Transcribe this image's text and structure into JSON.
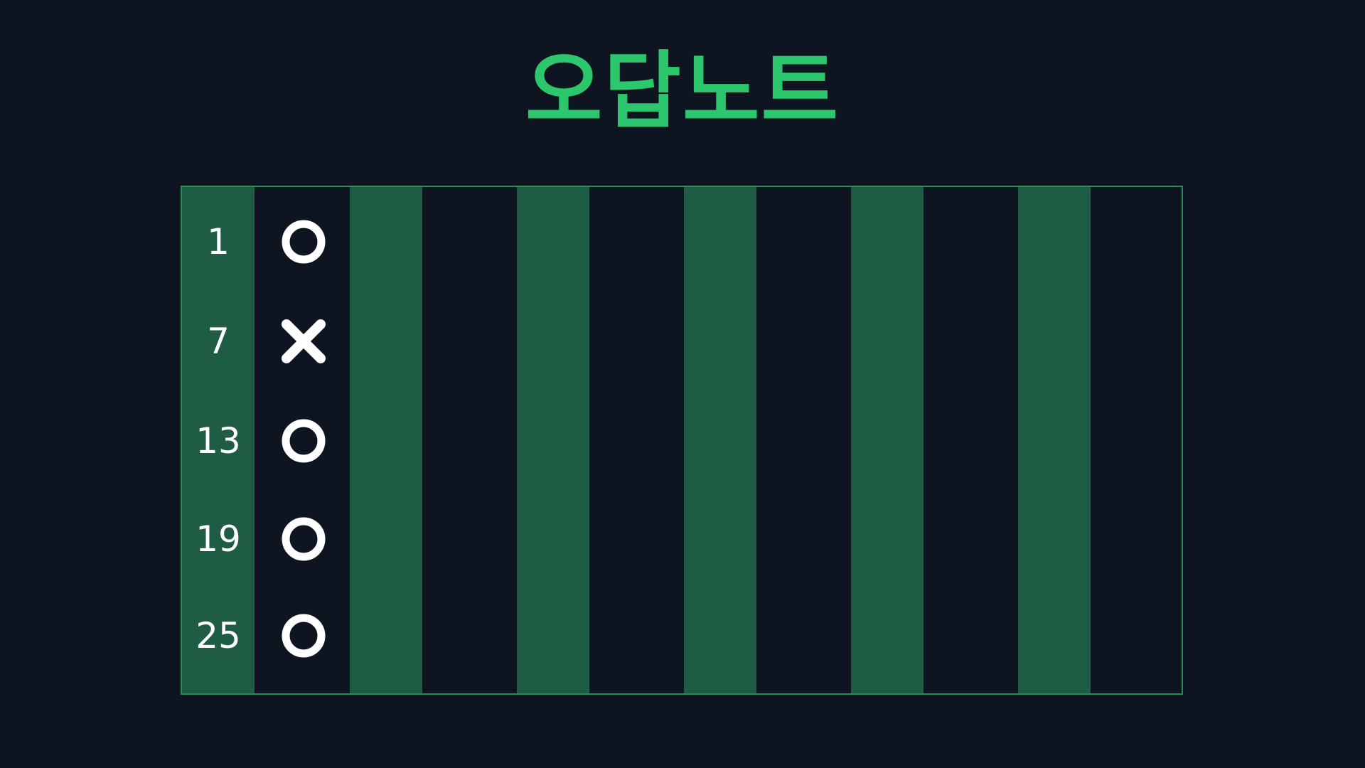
{
  "title": "오답노트",
  "colors": {
    "background": "#0e1521",
    "accent": "#2cc76c",
    "stripe": "#1f5c44",
    "border": "#2a8a55",
    "mark": "#ffffff"
  },
  "rows": [
    {
      "number": "1",
      "result": "correct",
      "icon": "circle-o-icon"
    },
    {
      "number": "7",
      "result": "wrong",
      "icon": "x-mark-icon"
    },
    {
      "number": "13",
      "result": "correct",
      "icon": "circle-o-icon"
    },
    {
      "number": "19",
      "result": "correct",
      "icon": "circle-o-icon"
    },
    {
      "number": "25",
      "result": "correct",
      "icon": "circle-o-icon"
    }
  ]
}
